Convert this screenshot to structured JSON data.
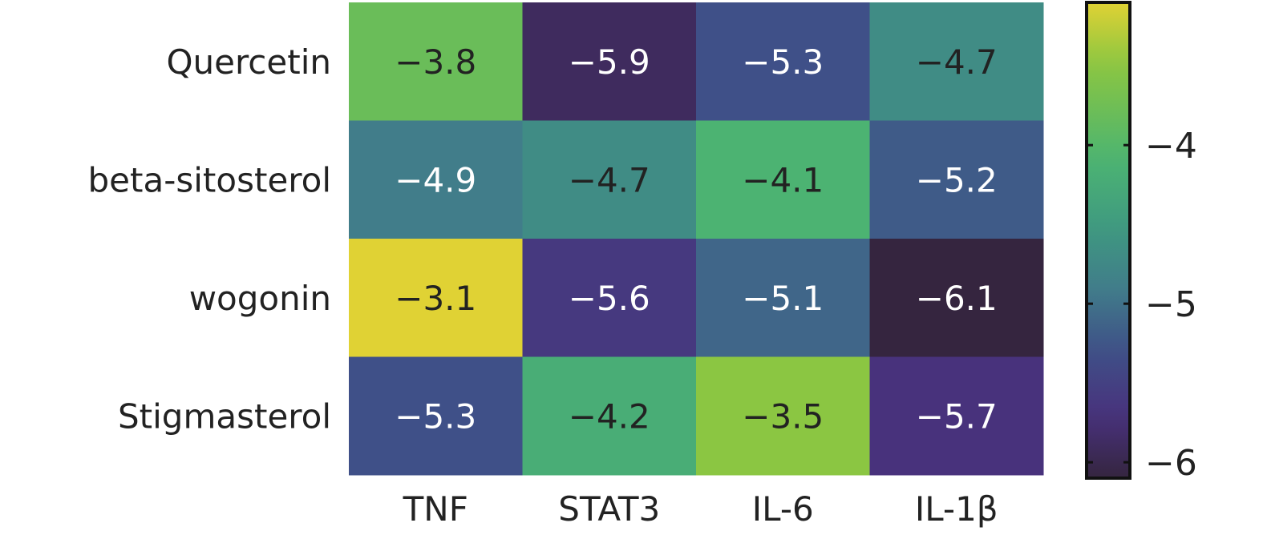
{
  "chart_data": {
    "type": "heatmap",
    "title": "",
    "xlabel": "",
    "ylabel": "",
    "columns": [
      "TNF",
      "STAT3",
      "IL-6",
      "IL-1β"
    ],
    "rows": [
      "Quercetin",
      "beta-sitosterol",
      "wogonin",
      "Stigmasterol"
    ],
    "values": [
      [
        -3.8,
        -5.9,
        -5.3,
        -4.7
      ],
      [
        -4.9,
        -4.7,
        -4.1,
        -5.2
      ],
      [
        -3.1,
        -5.6,
        -5.1,
        -6.1
      ],
      [
        -5.3,
        -4.2,
        -3.5,
        -5.7
      ]
    ],
    "value_labels": [
      [
        "−3.8",
        "−5.9",
        "−5.3",
        "−4.7"
      ],
      [
        "−4.9",
        "−4.7",
        "−4.1",
        "−5.2"
      ],
      [
        "−3.1",
        "−5.6",
        "−5.1",
        "−6.1"
      ],
      [
        "−5.3",
        "−4.2",
        "−3.5",
        "−5.7"
      ]
    ],
    "colorbar": {
      "range": [
        -6.1,
        -3.1
      ],
      "ticks": [
        -4,
        -5,
        -6
      ],
      "tick_labels": [
        "−4",
        "−5",
        "−6"
      ],
      "colormap": "viridis"
    }
  }
}
